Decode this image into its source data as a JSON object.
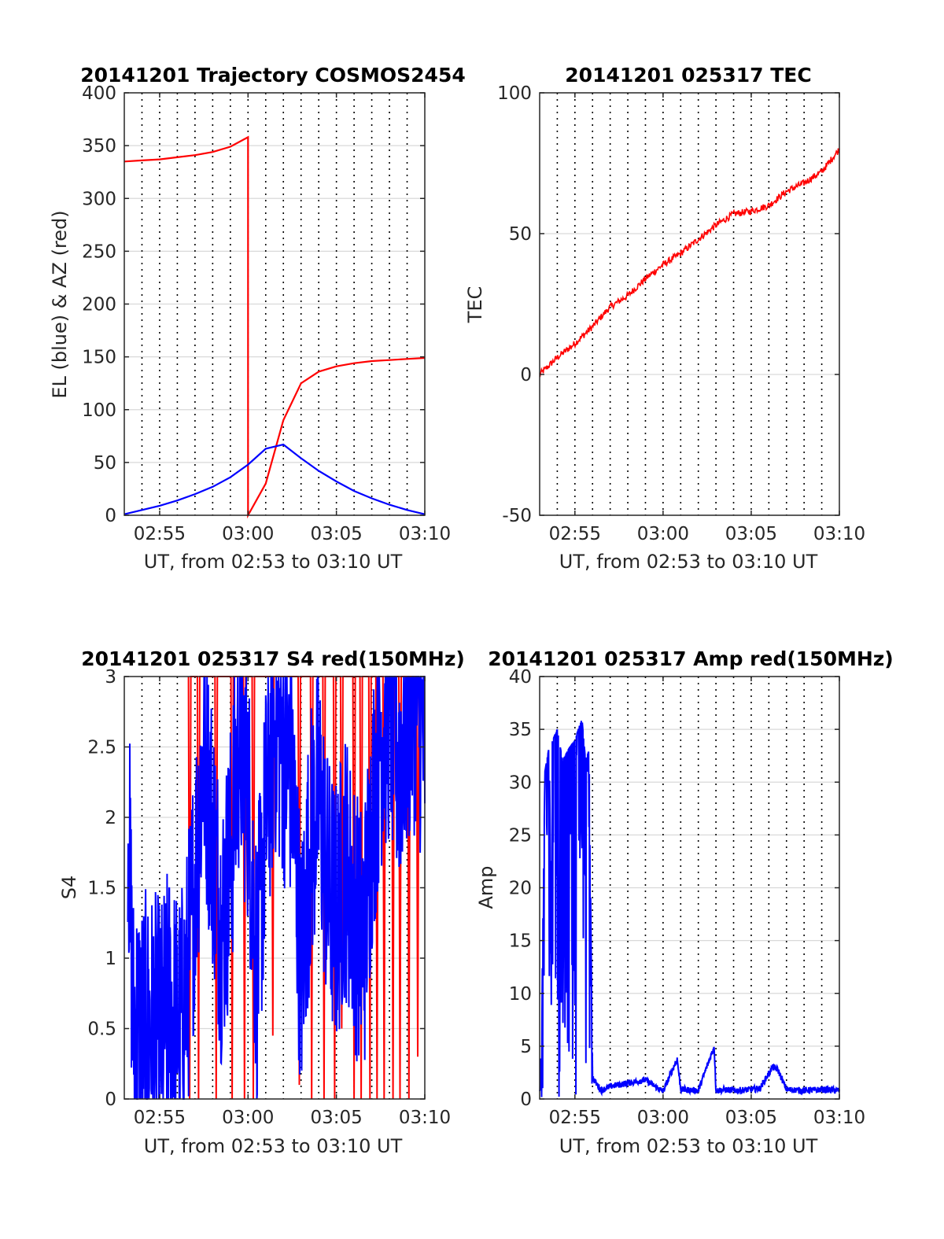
{
  "figure": {
    "colors": {
      "blue": "#0000ff",
      "red": "#ff0000",
      "grid": "#d9d9d9",
      "vline": "#000000",
      "axis": "#262626"
    }
  },
  "chart_data": [
    {
      "type": "line",
      "title": "20141201 Trajectory COSMOS2454",
      "xlabel": "UT, from 02:53 to 03:10 UT",
      "ylabel": "EL (blue) & AZ (red)",
      "xlim": [
        "02:53",
        "03:10"
      ],
      "ylim": [
        0,
        400
      ],
      "x_ticks": [
        "02:55",
        "03:00",
        "03:05",
        "03:10"
      ],
      "y_ticks": [
        "0",
        "50",
        "100",
        "150",
        "200",
        "250",
        "300",
        "350",
        "400"
      ],
      "grid": true,
      "series": [
        {
          "color": "red",
          "x": [
            "02:53",
            "02:54",
            "02:55",
            "02:56",
            "02:57",
            "02:58",
            "02:59",
            "03:00",
            "03:00",
            "03:01",
            "03:02",
            "03:03",
            "03:04",
            "03:05",
            "03:06",
            "03:07",
            "03:08",
            "03:09",
            "03:10"
          ],
          "values": [
            335,
            336,
            337,
            339,
            341,
            344,
            349,
            358,
            0,
            30,
            90,
            125,
            136,
            141,
            144,
            146,
            147,
            148,
            149
          ]
        },
        {
          "color": "blue",
          "x": [
            "02:53",
            "02:54",
            "02:55",
            "02:56",
            "02:57",
            "02:58",
            "02:59",
            "03:00",
            "03:01",
            "03:02",
            "03:03",
            "03:04",
            "03:05",
            "03:06",
            "03:07",
            "03:08",
            "03:09",
            "03:10"
          ],
          "values": [
            1,
            5,
            9,
            14,
            20,
            27,
            36,
            48,
            63,
            67,
            54,
            42,
            32,
            23,
            16,
            10,
            5,
            1
          ]
        }
      ]
    },
    {
      "type": "line",
      "title": "20141201 025317 TEC",
      "xlabel": "UT, from 02:53 to 03:10 UT",
      "ylabel": "TEC",
      "xlim": [
        "02:53",
        "03:10"
      ],
      "ylim": [
        -50,
        100
      ],
      "x_ticks": [
        "02:55",
        "03:00",
        "03:05",
        "03:10"
      ],
      "y_ticks": [
        "-50",
        "0",
        "50",
        "100"
      ],
      "grid": true,
      "series": [
        {
          "color": "red",
          "x": [
            "02:53",
            "02:54",
            "02:55",
            "02:56",
            "02:57",
            "02:58",
            "02:59",
            "03:00",
            "03:01",
            "03:02",
            "03:03",
            "03:04",
            "03:05",
            "03:06",
            "03:07",
            "03:08",
            "03:09",
            "03:10"
          ],
          "values": [
            0,
            6,
            11,
            17,
            24,
            28,
            34,
            39,
            43,
            48,
            53,
            57,
            58,
            60,
            65,
            68,
            72,
            80
          ]
        }
      ]
    },
    {
      "type": "line",
      "title": "20141201 025317 S4 red(150MHz)",
      "xlabel": "UT, from 02:53 to 03:10 UT",
      "ylabel": "S4",
      "xlim": [
        "02:53",
        "03:10"
      ],
      "ylim": [
        0,
        3
      ],
      "x_ticks": [
        "02:55",
        "03:00",
        "03:05",
        "03:10"
      ],
      "y_ticks": [
        "0",
        "0.5",
        "1",
        "1.5",
        "2",
        "2.5",
        "3"
      ],
      "grid": true,
      "series": [
        {
          "color": "red",
          "x": [
            "02:56.7",
            "02:57.2",
            "02:58.2",
            "02:59.1",
            "02:59.8",
            "03:00.3",
            "03:01.4",
            "03:02.9",
            "03:03.6",
            "03:04.3",
            "03:04.9",
            "03:05.3",
            "03:06.0",
            "03:06.4",
            "03:06.9",
            "03:07.3",
            "03:07.7",
            "03:08.2",
            "03:08.6",
            "03:09.1",
            "03:09.6"
          ],
          "values": [
            0,
            0,
            0,
            0,
            0,
            0,
            0.45,
            0.1,
            0,
            0,
            0,
            0.5,
            0,
            0,
            0,
            0,
            0,
            0,
            0,
            0,
            0.3
          ]
        },
        {
          "color": "blue",
          "x": [
            "02:53.2",
            "02:53.5",
            "02:54.0",
            "02:54.5",
            "02:54.8",
            "02:55.1",
            "02:55.5",
            "02:55.9",
            "02:56.2",
            "02:56.6",
            "02:57.0",
            "02:57.5",
            "02:58.0",
            "02:58.5",
            "02:59.0",
            "02:59.5",
            "03:00.0",
            "03:00.5",
            "03:01.0",
            "03:01.5",
            "03:02.0",
            "03:02.5",
            "03:03.0",
            "03:03.5",
            "03:04.0",
            "03:04.5",
            "03:05.0",
            "03:05.5",
            "03:06.0",
            "03:06.3",
            "03:06.6",
            "03:07.0",
            "03:07.5",
            "03:08.0",
            "03:08.5",
            "03:09.0",
            "03:09.5",
            "03:10.0"
          ],
          "values": [
            1.8,
            0.15,
            0.1,
            0.12,
            0.1,
            0.05,
            0.3,
            0.15,
            0.12,
            0.5,
            1.2,
            2.1,
            1.5,
            0.8,
            1.3,
            2.2,
            1.8,
            0.5,
            1.6,
            2.3,
            2.1,
            1.9,
            0.5,
            1.4,
            1.8,
            1.1,
            0.9,
            1.3,
            0.95,
            0.75,
            0.8,
            1.6,
            2.2,
            2.4,
            2.0,
            2.3,
            2.5,
            2.1
          ]
        }
      ]
    },
    {
      "type": "line",
      "title": "20141201 025317 Amp red(150MHz)",
      "xlabel": "UT, from 02:53 to 03:10 UT",
      "ylabel": "Amp",
      "xlim": [
        "02:53",
        "03:10"
      ],
      "ylim": [
        0,
        40
      ],
      "x_ticks": [
        "02:55",
        "03:00",
        "03:05",
        "03:10"
      ],
      "y_ticks": [
        "0",
        "5",
        "10",
        "15",
        "20",
        "25",
        "30",
        "35",
        "40"
      ],
      "grid": true,
      "series": [
        {
          "color": "blue",
          "x": [
            "02:53.0",
            "02:53.1",
            "02:53.3",
            "02:53.5",
            "02:54.0",
            "02:54.3",
            "02:54.6",
            "02:55.0",
            "02:55.4",
            "02:55.6",
            "02:55.8",
            "02:56.0",
            "02:56.2",
            "02:56.5",
            "02:57.0",
            "02:58.0",
            "02:59.0",
            "03:00.0",
            "03:00.8",
            "03:01.0",
            "03:02.0",
            "03:02.9",
            "03:03.0",
            "03:03.5",
            "03:04.0",
            "03:05.0",
            "03:05.5",
            "03:06.2",
            "03:06.5",
            "03:07.0",
            "03:08.0",
            "03:09.0",
            "03:10.0"
          ],
          "values": [
            1,
            6,
            31,
            33,
            35,
            32,
            33,
            34,
            36,
            32,
            33,
            2,
            1.5,
            0.8,
            1.2,
            1.5,
            1.8,
            0.7,
            3.8,
            0.9,
            0.8,
            5.0,
            0.8,
            0.9,
            0.8,
            0.9,
            1.0,
            3.0,
            2.8,
            0.9,
            0.8,
            0.9,
            0.8
          ]
        }
      ]
    }
  ]
}
